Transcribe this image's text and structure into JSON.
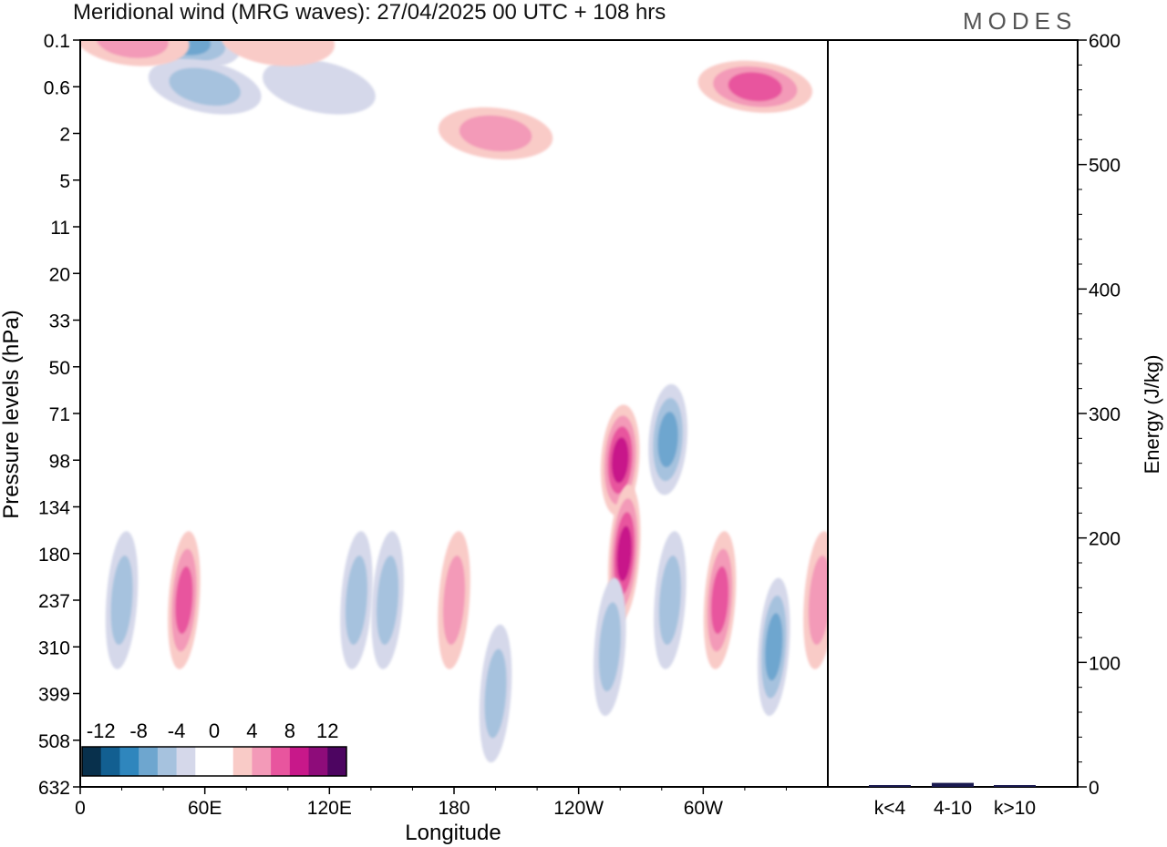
{
  "header": {
    "title": "Meridional wind (MRG waves):  27/04/2025  00 UTC  + 108 hrs",
    "brand": "MODES"
  },
  "colors": {
    "neg": [
      "#08304c",
      "#125f91",
      "#2f86bd",
      "#6ea6cf",
      "#a6c2de",
      "#d5d8ea"
    ],
    "zero": "#ffffff",
    "pos": [
      "#f9cbc7",
      "#f39ab8",
      "#e8559e",
      "#c8188a",
      "#8e0c7a",
      "#4d0561"
    ],
    "bar": "#1a1a50"
  },
  "chart_data": [
    {
      "type": "heatmap",
      "xlabel": "Longitude",
      "ylabel": "Pressure levels (hPa)",
      "x_ticks": [
        "0",
        "60E",
        "120E",
        "180",
        "120W",
        "60W"
      ],
      "y_ticks": [
        "0.1",
        "0.6",
        "2",
        "5",
        "11",
        "20",
        "33",
        "50",
        "71",
        "98",
        "134",
        "180",
        "237",
        "310",
        "399",
        "508",
        "632"
      ],
      "colorbar": {
        "labels": [
          "-12",
          "-8",
          "-4",
          "0",
          "4",
          "8",
          "12"
        ],
        "levels": [
          -12,
          -10,
          -8,
          -6,
          -4,
          -2,
          2,
          4,
          6,
          8,
          10,
          12
        ]
      },
      "features": [
        {
          "lon": 50,
          "level": 0.1,
          "value": -6
        },
        {
          "lon": 60,
          "level": 0.6,
          "value": -5
        },
        {
          "lon": 25,
          "level": 0.1,
          "value": 5
        },
        {
          "lon": 115,
          "level": 0.6,
          "value": -3
        },
        {
          "lon": 95,
          "level": 0.1,
          "value": 3
        },
        {
          "lon": 325,
          "level": 0.6,
          "value": 6
        },
        {
          "lon": 200,
          "level": 2,
          "value": 4
        },
        {
          "lon": 260,
          "level": 98,
          "value": 9
        },
        {
          "lon": 262,
          "level": 180,
          "value": 8
        },
        {
          "lon": 283,
          "level": 85,
          "value": -7
        },
        {
          "lon": 284,
          "level": 237,
          "value": -5
        },
        {
          "lon": 308,
          "level": 237,
          "value": 6
        },
        {
          "lon": 334,
          "level": 310,
          "value": -7
        },
        {
          "lon": 20,
          "level": 237,
          "value": -5
        },
        {
          "lon": 50,
          "level": 237,
          "value": 7
        },
        {
          "lon": 133,
          "level": 237,
          "value": -5
        },
        {
          "lon": 148,
          "level": 237,
          "value": -4
        },
        {
          "lon": 180,
          "level": 237,
          "value": 5
        },
        {
          "lon": 200,
          "level": 399,
          "value": -5
        },
        {
          "lon": 255,
          "level": 310,
          "value": -5
        },
        {
          "lon": 356,
          "level": 237,
          "value": 5
        }
      ]
    },
    {
      "type": "bar",
      "categories": [
        "k<4",
        "4-10",
        "k>10"
      ],
      "values": [
        0.5,
        2.5,
        0.5
      ],
      "ylabel": "Energy (J/kg)",
      "ylim": [
        0,
        600
      ],
      "y_ticks": [
        "0",
        "100",
        "200",
        "300",
        "400",
        "500",
        "600"
      ]
    }
  ]
}
